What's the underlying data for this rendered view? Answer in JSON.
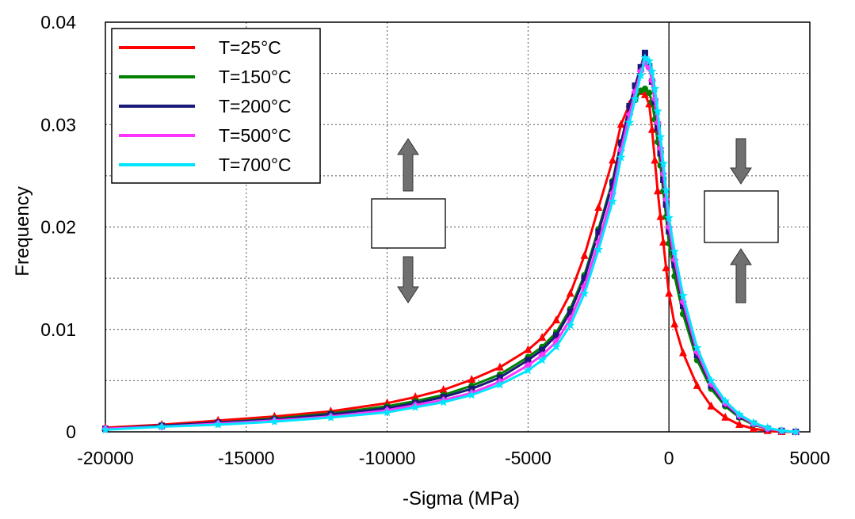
{
  "chart_data": {
    "type": "line",
    "title": "",
    "xlabel": "-Sigma (MPa)",
    "ylabel": "Frequency",
    "xlim": [
      -20000,
      5000
    ],
    "ylim": [
      0,
      0.04
    ],
    "xticks": [
      "-20000",
      "-15000",
      "-10000",
      "-5000",
      "0",
      "5000"
    ],
    "yticks": [
      "0",
      "0.01",
      "0.02",
      "0.03",
      "0.04"
    ],
    "grid": true,
    "legend_position": "top-left",
    "reference_line_x": 0,
    "series": [
      {
        "name": "T=25°C",
        "color": "#ff0000",
        "marker": "triangle",
        "x": [
          -20000,
          -18000,
          -16000,
          -14000,
          -12000,
          -10000,
          -9000,
          -8000,
          -7000,
          -6000,
          -5000,
          -4500,
          -4000,
          -3500,
          -3000,
          -2500,
          -2000,
          -1700,
          -1400,
          -1200,
          -1000,
          -850,
          -700,
          -600,
          -500,
          -400,
          -300,
          -200,
          -100,
          0,
          200,
          500,
          1000,
          1500,
          2000,
          2500,
          3000,
          3500,
          4000,
          4500
        ],
        "y": [
          0.0004,
          0.0007,
          0.0011,
          0.0015,
          0.002,
          0.0028,
          0.0034,
          0.0041,
          0.0051,
          0.0063,
          0.008,
          0.0092,
          0.0109,
          0.0135,
          0.0172,
          0.0219,
          0.0265,
          0.03,
          0.032,
          0.0328,
          0.0332,
          0.0329,
          0.032,
          0.0295,
          0.0265,
          0.0235,
          0.021,
          0.0185,
          0.016,
          0.0135,
          0.0105,
          0.0077,
          0.0045,
          0.0025,
          0.0014,
          0.0007,
          0.0003,
          0.0001,
          0.0,
          0.0
        ]
      },
      {
        "name": "T=150°C",
        "color": "#008000",
        "marker": "circle",
        "x": [
          -20000,
          -18000,
          -16000,
          -14000,
          -12000,
          -10000,
          -9000,
          -8000,
          -7000,
          -6000,
          -5000,
          -4500,
          -4000,
          -3500,
          -3000,
          -2500,
          -2000,
          -1700,
          -1400,
          -1200,
          -1000,
          -850,
          -700,
          -600,
          -500,
          -400,
          -300,
          -200,
          -100,
          0,
          200,
          500,
          1000,
          1500,
          2000,
          2500,
          3000,
          3500,
          4000,
          4500
        ],
        "y": [
          0.0003,
          0.0006,
          0.0009,
          0.0013,
          0.0018,
          0.0025,
          0.003,
          0.0036,
          0.0045,
          0.0056,
          0.0073,
          0.0083,
          0.0097,
          0.012,
          0.0153,
          0.0198,
          0.0245,
          0.0283,
          0.031,
          0.0324,
          0.0333,
          0.0335,
          0.0331,
          0.0322,
          0.0305,
          0.0283,
          0.026,
          0.0235,
          0.021,
          0.0184,
          0.0152,
          0.0115,
          0.007,
          0.0042,
          0.0025,
          0.0014,
          0.0007,
          0.0003,
          0.0001,
          0.0
        ]
      },
      {
        "name": "T=200°C",
        "color": "#1a1a7a",
        "marker": "square",
        "x": [
          -20000,
          -18000,
          -16000,
          -14000,
          -12000,
          -10000,
          -9000,
          -8000,
          -7000,
          -6000,
          -5000,
          -4500,
          -4000,
          -3500,
          -3000,
          -2500,
          -2000,
          -1700,
          -1400,
          -1200,
          -1000,
          -850,
          -700,
          -600,
          -500,
          -400,
          -300,
          -200,
          -100,
          0,
          200,
          500,
          1000,
          1500,
          2000,
          2500,
          3000,
          3500,
          4000,
          4500
        ],
        "y": [
          0.0003,
          0.0006,
          0.0009,
          0.0012,
          0.0017,
          0.0023,
          0.0028,
          0.0034,
          0.0042,
          0.0053,
          0.007,
          0.008,
          0.0094,
          0.0117,
          0.015,
          0.0195,
          0.0243,
          0.0282,
          0.0318,
          0.0338,
          0.0356,
          0.037,
          0.0357,
          0.0342,
          0.0322,
          0.0297,
          0.0272,
          0.0246,
          0.0222,
          0.0196,
          0.0163,
          0.0123,
          0.0075,
          0.0045,
          0.0027,
          0.0015,
          0.0008,
          0.0003,
          0.0001,
          0.0
        ]
      },
      {
        "name": "T=500°C",
        "color": "#ff33ff",
        "marker": "diamond",
        "x": [
          -20000,
          -18000,
          -16000,
          -14000,
          -12000,
          -10000,
          -9000,
          -8000,
          -7000,
          -6000,
          -5000,
          -4500,
          -4000,
          -3500,
          -3000,
          -2500,
          -2000,
          -1700,
          -1400,
          -1200,
          -1000,
          -850,
          -700,
          -600,
          -500,
          -400,
          -300,
          -200,
          -100,
          0,
          200,
          500,
          1000,
          1500,
          2000,
          2500,
          3000,
          3500,
          4000,
          4500
        ],
        "y": [
          0.0003,
          0.0005,
          0.0008,
          0.0011,
          0.0015,
          0.0021,
          0.0026,
          0.0031,
          0.0038,
          0.0049,
          0.0065,
          0.0075,
          0.0088,
          0.011,
          0.0142,
          0.0185,
          0.0233,
          0.0275,
          0.031,
          0.0332,
          0.0352,
          0.036,
          0.0355,
          0.0343,
          0.0325,
          0.0302,
          0.0277,
          0.0252,
          0.0227,
          0.02,
          0.0168,
          0.0127,
          0.0078,
          0.0047,
          0.0028,
          0.0016,
          0.0008,
          0.0003,
          0.0001,
          0.0
        ]
      },
      {
        "name": "T=700°C",
        "color": "#00e5ff",
        "marker": "star",
        "x": [
          -20000,
          -18000,
          -16000,
          -14000,
          -12000,
          -10000,
          -9000,
          -8000,
          -7000,
          -6000,
          -5000,
          -4500,
          -4000,
          -3500,
          -3000,
          -2500,
          -2000,
          -1700,
          -1400,
          -1200,
          -1000,
          -850,
          -700,
          -600,
          -500,
          -400,
          -300,
          -200,
          -100,
          0,
          200,
          500,
          1000,
          1500,
          2000,
          2500,
          3000,
          3500,
          4000,
          4500
        ],
        "y": [
          0.0002,
          0.0005,
          0.0007,
          0.001,
          0.0014,
          0.0019,
          0.0024,
          0.0029,
          0.0036,
          0.0046,
          0.006,
          0.007,
          0.0083,
          0.0104,
          0.0135,
          0.0178,
          0.0225,
          0.0268,
          0.0302,
          0.0325,
          0.0348,
          0.0365,
          0.0362,
          0.0352,
          0.0335,
          0.0313,
          0.0288,
          0.0262,
          0.0236,
          0.0209,
          0.0176,
          0.0133,
          0.0082,
          0.005,
          0.003,
          0.0017,
          0.0009,
          0.0004,
          0.0001,
          0.0
        ]
      }
    ]
  },
  "insets": [
    {
      "name": "tension-box",
      "arrows": "outward",
      "arrow_color": "#707070"
    },
    {
      "name": "compression-box",
      "arrows": "inward",
      "arrow_color": "#707070"
    }
  ]
}
